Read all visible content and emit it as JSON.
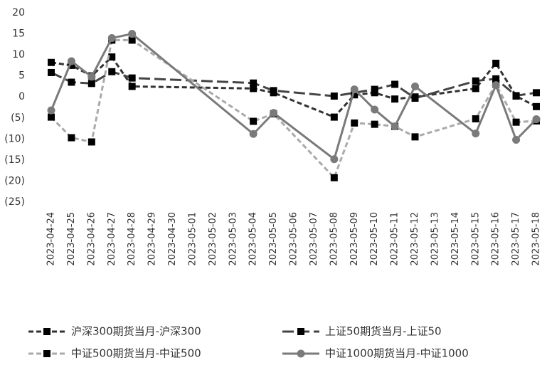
{
  "chart_data": {
    "type": "line",
    "x": [
      "2023-04-24",
      "2023-04-25",
      "2023-04-26",
      "2023-04-27",
      "2023-04-28",
      "2023-05-04",
      "2023-05-05",
      "2023-05-08",
      "2023-05-09",
      "2023-05-10",
      "2023-05-11",
      "2023-05-12",
      "2023-05-15",
      "2023-05-16",
      "2023-05-17",
      "2023-05-18"
    ],
    "xticks": [
      "2023-04-24",
      "2023-04-25",
      "2023-04-26",
      "2023-04-27",
      "2023-04-28",
      "2023-04-29",
      "2023-04-30",
      "2023-05-01",
      "2023-05-02",
      "2023-05-03",
      "2023-05-04",
      "2023-05-05",
      "2023-05-06",
      "2023-05-07",
      "2023-05-08",
      "2023-05-09",
      "2023-05-10",
      "2023-05-11",
      "2023-05-12",
      "2023-05-13",
      "2023-05-14",
      "2023-05-15",
      "2023-05-16",
      "2023-05-17",
      "2023-05-18"
    ],
    "ylim": [
      -25,
      20
    ],
    "yticks": [
      20,
      15,
      10,
      5,
      0,
      {
        "value": -5,
        "label": "(5)"
      },
      {
        "value": -10,
        "label": "(10)"
      },
      {
        "value": -15,
        "label": "(15)"
      },
      {
        "value": -20,
        "label": "(20)"
      },
      {
        "value": -25,
        "label": "(25)"
      }
    ],
    "series": [
      {
        "name": "沪深300期货当月-沪深300",
        "color": "#333333",
        "dash": "short",
        "marker": "square",
        "values": [
          8.2,
          7.5,
          5,
          9.5,
          2.5,
          2,
          1,
          -4.8,
          0.5,
          1,
          -0.5,
          0,
          2,
          8,
          0.2,
          -2.3
        ]
      },
      {
        "name": "上证50期货当月-上证50",
        "color": "#444444",
        "dash": "long",
        "marker": "square",
        "values": [
          5.8,
          3.5,
          3.2,
          6,
          4.5,
          3.3,
          1.5,
          0.2,
          1,
          1.8,
          3,
          -0.3,
          3.8,
          4.3,
          0.3,
          1
        ]
      },
      {
        "name": "中证500期货当月-中证500",
        "color": "#aaaaaa",
        "dash": "short",
        "marker": "square",
        "values": [
          -4.8,
          -9.7,
          -10.7,
          13.5,
          13.5,
          -5.8,
          -4,
          -19.2,
          -6.2,
          -6.5,
          -7,
          -9.5,
          -5.2,
          3,
          -6,
          -5.7
        ]
      },
      {
        "name": "中证1000期货当月-中证1000",
        "color": "#7a7a7a",
        "dash": "solid",
        "marker": "circle",
        "values": [
          -3.2,
          8.5,
          4.8,
          14,
          15,
          -8.8,
          -3.8,
          -14.8,
          1.8,
          -3,
          -7,
          2.5,
          -8.7,
          2.8,
          -10.2,
          -5.3
        ]
      }
    ]
  }
}
